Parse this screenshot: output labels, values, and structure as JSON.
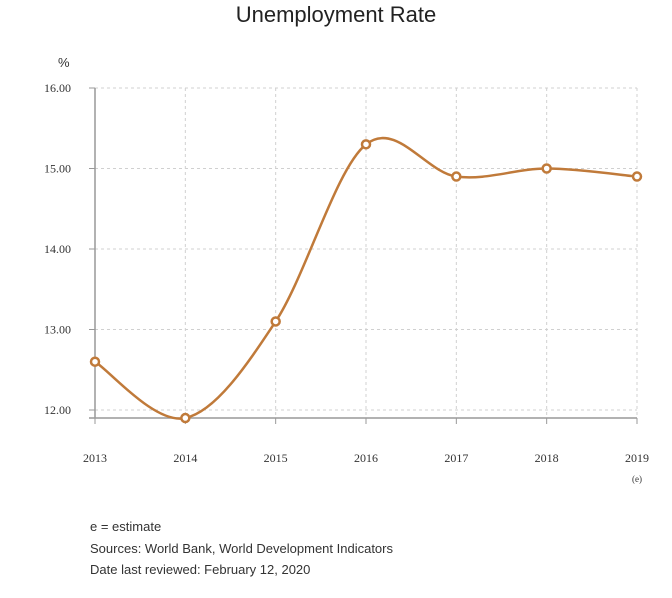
{
  "chart_data": {
    "type": "line",
    "title": "Unemployment Rate",
    "y_unit": "%",
    "x": [
      "2013",
      "2014",
      "2015",
      "2016",
      "2017",
      "2018",
      "2019"
    ],
    "x_annotations": {
      "2019": "(e)"
    },
    "series": [
      {
        "values": [
          12.6,
          11.9,
          13.1,
          15.3,
          14.9,
          15.0,
          14.9
        ]
      }
    ],
    "ylim": [
      12.0,
      16.0
    ],
    "yticks": [
      "12.00",
      "13.00",
      "14.00",
      "15.00",
      "16.00"
    ],
    "grid": true,
    "line_color": "#c07a3a",
    "marker": "hollow-circle"
  },
  "notes": {
    "estimate": "e = estimate",
    "sources": "Sources: World Bank, World Development Indicators",
    "reviewed": "Date last reviewed: February 12, 2020"
  }
}
